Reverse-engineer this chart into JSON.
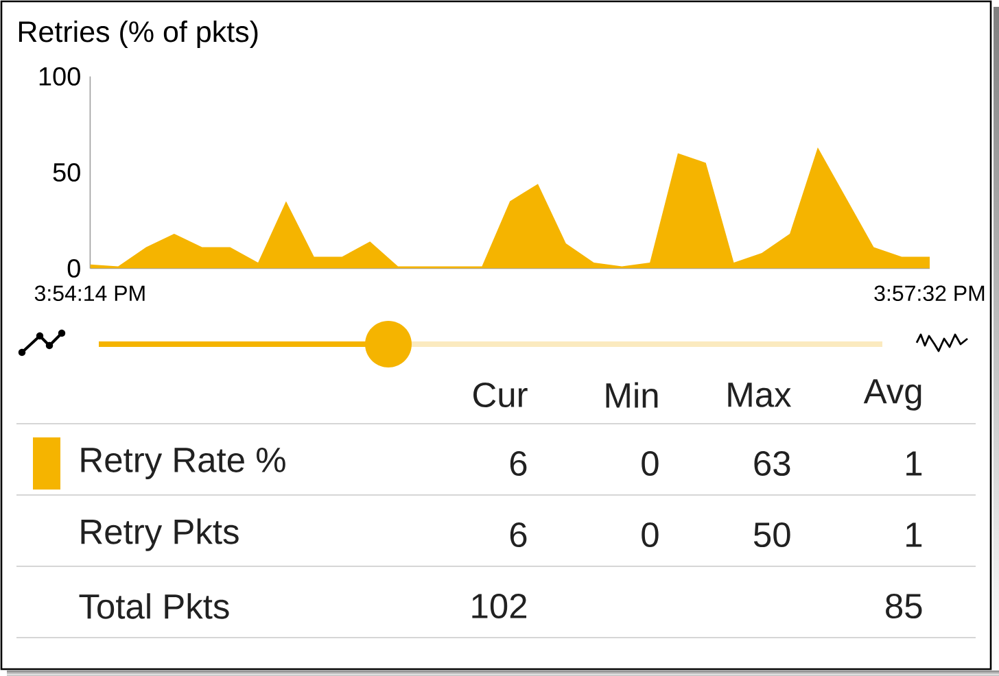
{
  "chart_data": [
    {
      "type": "area",
      "title": "Retries (% of pkts)",
      "categories": [
        "3:54:14 PM",
        null,
        null,
        null,
        null,
        null,
        null,
        null,
        null,
        null,
        null,
        null,
        null,
        null,
        null,
        null,
        null,
        null,
        null,
        null,
        null,
        null,
        null,
        null,
        null,
        null,
        null,
        null,
        null,
        null,
        "3:57:32 PM"
      ],
      "values": [
        2,
        1,
        11,
        18,
        11,
        11,
        3,
        35,
        6,
        6,
        14,
        1,
        1,
        1,
        1,
        35,
        44,
        13,
        3,
        1,
        3,
        60,
        55,
        3,
        8,
        18,
        63,
        37,
        11,
        6,
        6
      ],
      "color": "#f5b400",
      "ylim": [
        0,
        100
      ],
      "yticks": [
        0,
        50,
        100
      ]
    },
    {
      "type": "other",
      "categories": [
        "Cur",
        "Min",
        "Max",
        "Avg"
      ],
      "series": [
        {
          "name": "Retry Rate %",
          "color": "#f5b400",
          "values": [
            6,
            0,
            63,
            1
          ]
        },
        {
          "name": "Retry Pkts",
          "values": [
            6,
            0,
            50,
            1
          ]
        },
        {
          "name": "Total Pkts",
          "values": [
            102,
            null,
            null,
            85
          ]
        }
      ],
      "data_labels": true
    }
  ]
}
